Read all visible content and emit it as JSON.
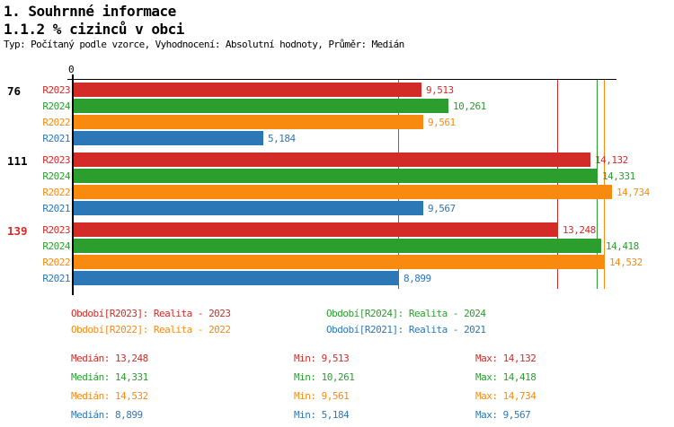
{
  "header": {
    "title1": "1. Souhrnné informace",
    "title2": "1.1.2 % cizinců v obci",
    "subtitle": "Typ: Počítaný podle vzorce, Vyhodnocení: Absolutní hodnoty, Průměr: Medián"
  },
  "colors": {
    "R2023": "#d32b27",
    "R2024": "#2b9e2e",
    "R2022": "#f98a10",
    "R2021": "#2c77b5",
    "group_label": "#000000",
    "group_label_highlight": "#d32b27",
    "axis": "#000000"
  },
  "chart_data": {
    "type": "bar",
    "orientation": "horizontal",
    "title": "1.1.2 % cizinců v obci",
    "x_axis": {
      "origin_label": "0",
      "xmax": 14870,
      "grid": false
    },
    "series_order": [
      "R2023",
      "R2024",
      "R2022",
      "R2021"
    ],
    "groups": [
      {
        "label": "76",
        "highlight": false,
        "values": {
          "R2023": 9513,
          "R2024": 10261,
          "R2022": 9561,
          "R2021": 5184
        }
      },
      {
        "label": "111",
        "highlight": false,
        "values": {
          "R2023": 14132,
          "R2024": 14331,
          "R2022": 14734,
          "R2021": 9567
        }
      },
      {
        "label": "139",
        "highlight": true,
        "values": {
          "R2023": 13248,
          "R2024": 14418,
          "R2022": 14532,
          "R2021": 8899
        }
      }
    ],
    "median_lines": {
      "R2023": 13248,
      "R2024": 14331,
      "R2022": 14532,
      "R2021": 8899
    }
  },
  "legend": {
    "items": [
      {
        "series": "R2023",
        "label": "Období[R2023]: Realita - 2023",
        "col": 0,
        "row": 0
      },
      {
        "series": "R2024",
        "label": "Období[R2024]: Realita - 2024",
        "col": 1,
        "row": 0
      },
      {
        "series": "R2022",
        "label": "Období[R2022]: Realita - 2022",
        "col": 0,
        "row": 1
      },
      {
        "series": "R2021",
        "label": "Období[R2021]: Realita - 2021",
        "col": 1,
        "row": 1
      }
    ]
  },
  "stats": {
    "median_label": "Medián",
    "min_label": "Min",
    "max_label": "Max",
    "rows": [
      {
        "series": "R2023",
        "median": 13248,
        "min": 9513,
        "max": 14132
      },
      {
        "series": "R2024",
        "median": 14331,
        "min": 10261,
        "max": 14418
      },
      {
        "series": "R2022",
        "median": 14532,
        "min": 9561,
        "max": 14734
      },
      {
        "series": "R2021",
        "median": 8899,
        "min": 5184,
        "max": 9567
      }
    ]
  }
}
